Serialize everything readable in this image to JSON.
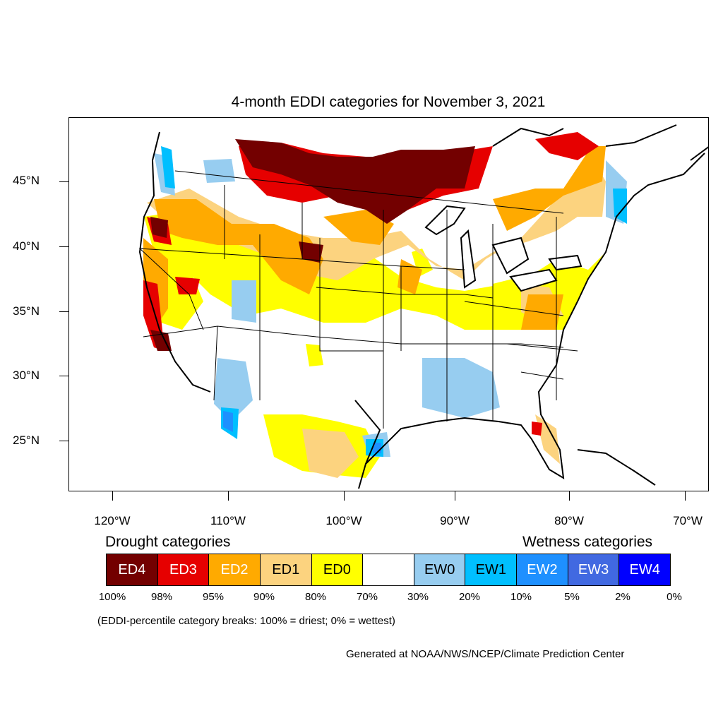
{
  "title": "4-month EDDI categories for November 3, 2021",
  "lat_labels": [
    "45°N",
    "40°N",
    "35°N",
    "30°N",
    "25°N"
  ],
  "lon_labels": [
    "120°W",
    "110°W",
    "100°W",
    "90°W",
    "80°W",
    "70°W"
  ],
  "legend": {
    "drought_heading": "Drought categories",
    "wetness_heading": "Wetness categories",
    "categories": [
      {
        "label": "ED4",
        "color": "#730000",
        "text_color": "#ffffff"
      },
      {
        "label": "ED3",
        "color": "#e60000",
        "text_color": "#ffffff"
      },
      {
        "label": "ED2",
        "color": "#ffaa00",
        "text_color": "#ffffff"
      },
      {
        "label": "ED1",
        "color": "#fcd37f",
        "text_color": "#000000"
      },
      {
        "label": "ED0",
        "color": "#ffff00",
        "text_color": "#000000"
      },
      {
        "label": "",
        "color": "#ffffff",
        "text_color": "#000000"
      },
      {
        "label": "EW0",
        "color": "#97cdf0",
        "text_color": "#000000"
      },
      {
        "label": "EW1",
        "color": "#00bfff",
        "text_color": "#000000"
      },
      {
        "label": "EW2",
        "color": "#1e90ff",
        "text_color": "#ffffff"
      },
      {
        "label": "EW3",
        "color": "#4169e1",
        "text_color": "#ffffff"
      },
      {
        "label": "EW4",
        "color": "#0000ff",
        "text_color": "#ffffff"
      }
    ],
    "percent_breaks": [
      "100%",
      "98%",
      "95%",
      "90%",
      "80%",
      "70%",
      "30%",
      "20%",
      "10%",
      "5%",
      "2%",
      "0%"
    ]
  },
  "note": "(EDDI-percentile category breaks: 100% = driest; 0% = wettest)",
  "credit": "Generated at NOAA/NWS/NCEP/Climate Prediction Center"
}
